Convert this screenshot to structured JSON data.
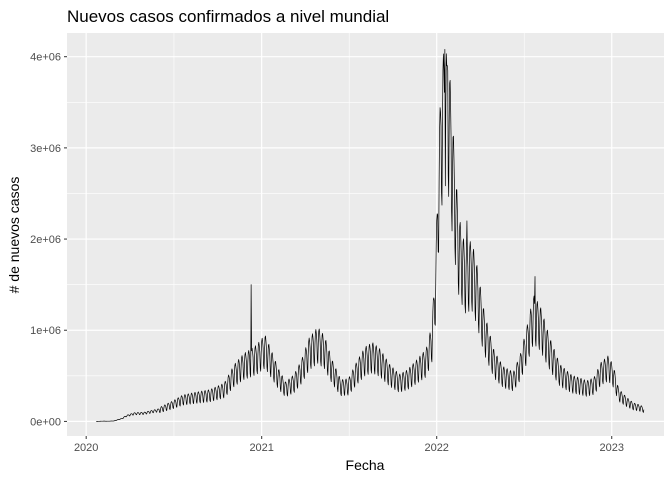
{
  "chart_data": {
    "type": "line",
    "title": "Nuevos casos confirmados a nivel mundial",
    "xlabel": "Fecha",
    "ylabel": "# de nuevos casos",
    "x_ticks": [
      {
        "date": "2020-01-01",
        "label": "2020"
      },
      {
        "date": "2021-01-01",
        "label": "2021"
      },
      {
        "date": "2022-01-01",
        "label": "2022"
      },
      {
        "date": "2023-01-01",
        "label": "2023"
      }
    ],
    "y_ticks": [
      {
        "value": 0,
        "label": "0e+00"
      },
      {
        "value": 1000000,
        "label": "1e+06"
      },
      {
        "value": 2000000,
        "label": "2e+06"
      },
      {
        "value": 3000000,
        "label": "3e+06"
      },
      {
        "value": 4000000,
        "label": "4e+06"
      }
    ],
    "xlim": [
      "2019-11-22",
      "2023-04-20"
    ],
    "ylim": [
      -160000,
      4260000
    ],
    "grid": true,
    "colors": {
      "panel": "#ebebeb",
      "grid": "#ffffff",
      "line": "#000000"
    },
    "series": [
      {
        "name": "",
        "points": [
          [
            "2020-01-22",
            0
          ],
          [
            "2020-02-05",
            3000
          ],
          [
            "2020-02-15",
            2000
          ],
          [
            "2020-02-28",
            5000
          ],
          [
            "2020-03-15",
            30000
          ],
          [
            "2020-03-25",
            60000
          ],
          [
            "2020-04-10",
            85000
          ],
          [
            "2020-05-01",
            90000
          ],
          [
            "2020-06-01",
            125000
          ],
          [
            "2020-07-01",
            190000
          ],
          [
            "2020-07-20",
            240000
          ],
          [
            "2020-08-15",
            265000
          ],
          [
            "2020-09-15",
            290000
          ],
          [
            "2020-10-15",
            350000
          ],
          [
            "2020-11-05",
            520000
          ],
          [
            "2020-11-25",
            620000
          ],
          [
            "2020-12-10",
            660000
          ],
          [
            "2020-12-22",
            700000
          ],
          [
            "2021-01-08",
            790000
          ],
          [
            "2021-01-20",
            660000
          ],
          [
            "2021-02-05",
            480000
          ],
          [
            "2021-02-20",
            360000
          ],
          [
            "2021-03-10",
            430000
          ],
          [
            "2021-03-25",
            560000
          ],
          [
            "2021-04-10",
            760000
          ],
          [
            "2021-04-28",
            860000
          ],
          [
            "2021-05-12",
            780000
          ],
          [
            "2021-05-28",
            560000
          ],
          [
            "2021-06-15",
            380000
          ],
          [
            "2021-07-01",
            390000
          ],
          [
            "2021-07-20",
            560000
          ],
          [
            "2021-08-05",
            680000
          ],
          [
            "2021-08-20",
            720000
          ],
          [
            "2021-09-05",
            660000
          ],
          [
            "2021-09-25",
            520000
          ],
          [
            "2021-10-15",
            430000
          ],
          [
            "2021-11-01",
            470000
          ],
          [
            "2021-11-20",
            560000
          ],
          [
            "2021-12-10",
            660000
          ],
          [
            "2021-12-22",
            880000
          ],
          [
            "2021-12-30",
            1500000
          ],
          [
            "2022-01-05",
            2500000
          ],
          [
            "2022-01-10",
            3100000
          ],
          [
            "2022-01-18",
            3500000
          ],
          [
            "2022-01-25",
            3400000
          ],
          [
            "2022-02-05",
            2600000
          ],
          [
            "2022-02-15",
            1900000
          ],
          [
            "2022-03-01",
            1600000
          ],
          [
            "2022-03-15",
            1650000
          ],
          [
            "2022-03-25",
            1450000
          ],
          [
            "2022-04-10",
            1000000
          ],
          [
            "2022-05-01",
            640000
          ],
          [
            "2022-05-20",
            500000
          ],
          [
            "2022-06-10",
            450000
          ],
          [
            "2022-06-25",
            620000
          ],
          [
            "2022-07-10",
            900000
          ],
          [
            "2022-07-22",
            1150000
          ],
          [
            "2022-08-05",
            1050000
          ],
          [
            "2022-08-25",
            760000
          ],
          [
            "2022-09-15",
            520000
          ],
          [
            "2022-10-10",
            420000
          ],
          [
            "2022-10-25",
            400000
          ],
          [
            "2022-11-10",
            370000
          ],
          [
            "2022-11-25",
            400000
          ],
          [
            "2022-12-10",
            540000
          ],
          [
            "2022-12-25",
            600000
          ],
          [
            "2023-01-05",
            500000
          ],
          [
            "2023-01-15",
            300000
          ],
          [
            "2023-02-01",
            220000
          ],
          [
            "2023-02-15",
            170000
          ],
          [
            "2023-03-01",
            150000
          ],
          [
            "2023-03-09",
            130000
          ]
        ]
      }
    ],
    "spikes": [
      [
        "2020-12-10",
        1500000
      ],
      [
        "2022-01-18",
        4080000
      ],
      [
        "2022-01-22",
        3900000
      ],
      [
        "2022-01-24",
        3850000
      ],
      [
        "2022-07-25",
        1590000
      ],
      [
        "2022-03-05",
        2200000
      ]
    ]
  }
}
